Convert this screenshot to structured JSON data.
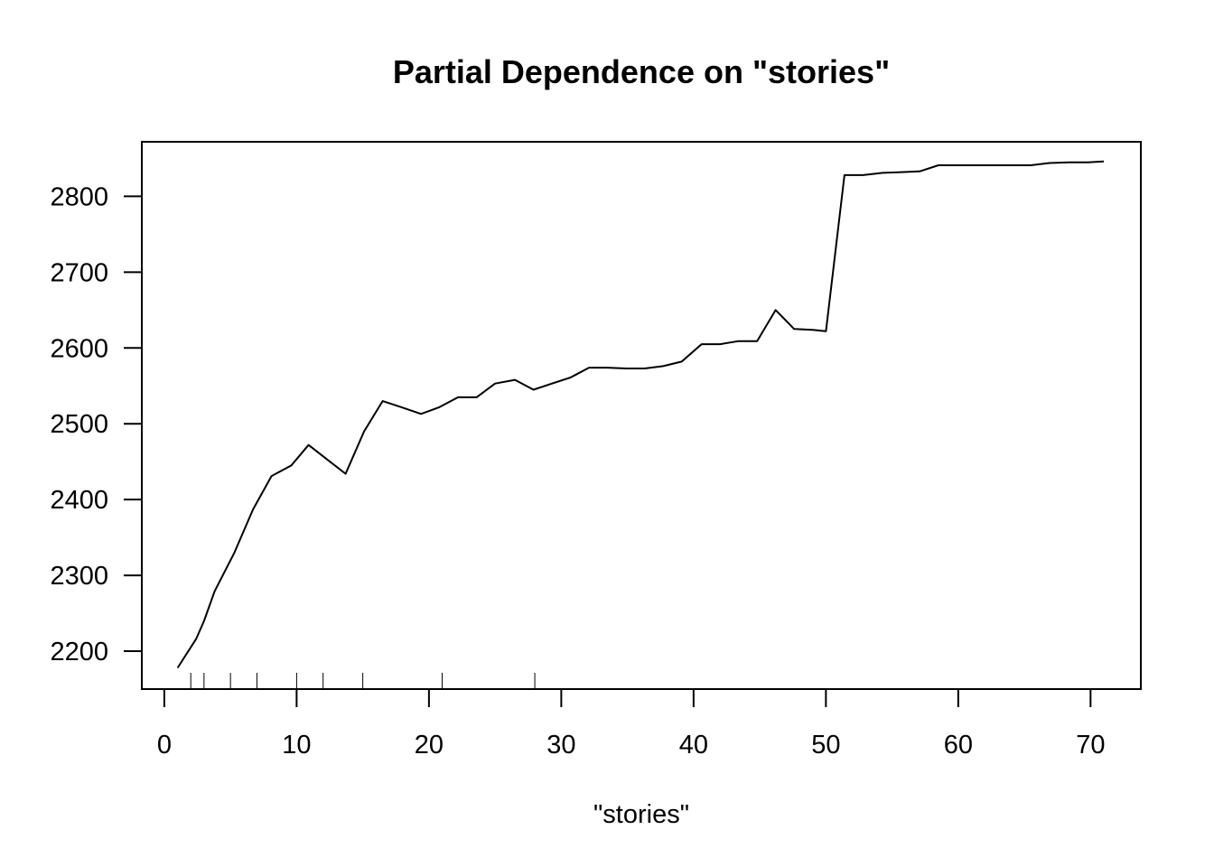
{
  "chart_data": {
    "type": "line",
    "title": "Partial Dependence on \"stories\"",
    "xlabel": "\"stories\"",
    "ylabel": "",
    "xlim": [
      -1.7,
      73.8
    ],
    "ylim": [
      2150,
      2872
    ],
    "xticks": [
      0,
      10,
      20,
      30,
      40,
      50,
      60,
      70
    ],
    "yticks": [
      2200,
      2300,
      2400,
      2500,
      2600,
      2700,
      2800
    ],
    "grid": false,
    "legend": "none",
    "line_color": "#000000",
    "series": [
      {
        "x": [
          1.0,
          2.4,
          3.0,
          3.8,
          5.3,
          6.7,
          8.1,
          9.6,
          10.9,
          12.3,
          13.7,
          15.1,
          16.5,
          17.9,
          19.4,
          20.8,
          22.2,
          23.6,
          25.0,
          26.5,
          27.9,
          29.3,
          30.7,
          32.1,
          33.5,
          34.9,
          36.3,
          37.7,
          39.1,
          40.6,
          42.0,
          43.4,
          44.8,
          46.2,
          47.6,
          49.0,
          50.0,
          51.4,
          52.8,
          54.3,
          55.7,
          57.1,
          58.5,
          59.9,
          61.3,
          62.7,
          64.1,
          65.5,
          66.9,
          68.4,
          69.8,
          71.0
        ],
        "y": [
          2178,
          2216,
          2240,
          2279,
          2330,
          2387,
          2431,
          2445,
          2472,
          2453,
          2434,
          2490,
          2530,
          2522,
          2513,
          2522,
          2535,
          2535,
          2553,
          2558,
          2545,
          2553,
          2561,
          2574,
          2574,
          2573,
          2573,
          2576,
          2582,
          2605,
          2605,
          2609,
          2609,
          2650,
          2625,
          2624,
          2622,
          2828,
          2828,
          2831,
          2832,
          2833,
          2841,
          2841,
          2841,
          2841,
          2841,
          2841,
          2844,
          2845,
          2845,
          2846
        ]
      }
    ],
    "rug": [
      2,
      3,
      5,
      7,
      10,
      12,
      15,
      21,
      28
    ]
  }
}
